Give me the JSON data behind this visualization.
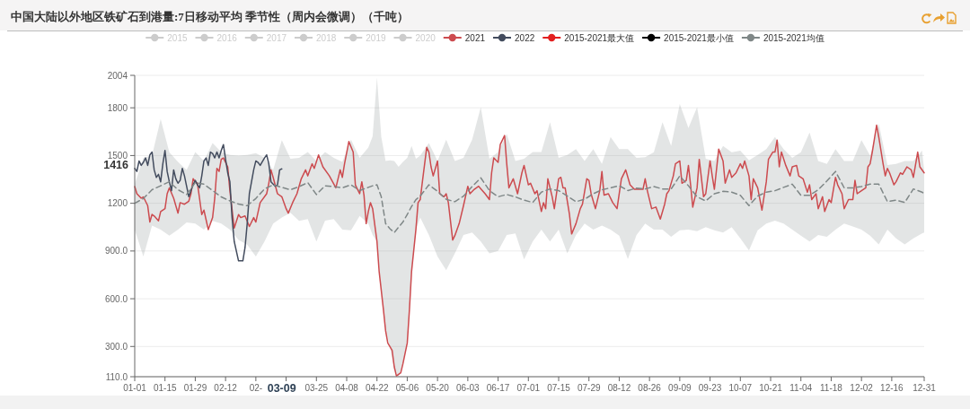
{
  "chart_data": {
    "type": "line",
    "title": "中国大陆以外地区铁矿石到港量:7日移动平均 季节性（周内会微调）（千吨）",
    "xlim": [
      "--01-01",
      "--12-31"
    ],
    "xticks": [
      {
        "value": "--01-01",
        "label": "01-01"
      },
      {
        "value": "--01-15",
        "label": "01-15"
      },
      {
        "value": "--01-29",
        "label": "01-29"
      },
      {
        "value": "--02-12",
        "label": "02-12"
      },
      {
        "value": "--02-26",
        "label": "02-"
      },
      {
        "value": "--03-11",
        "label": null
      },
      {
        "value": "--03-25",
        "label": "03-25"
      },
      {
        "value": "--04-08",
        "label": "04-08"
      },
      {
        "value": "--04-22",
        "label": "04-22"
      },
      {
        "value": "--05-06",
        "label": "05-06"
      },
      {
        "value": "--05-20",
        "label": "05-20"
      },
      {
        "value": "--06-03",
        "label": "06-03"
      },
      {
        "value": "--06-17",
        "label": "06-17"
      },
      {
        "value": "--07-01",
        "label": "07-01"
      },
      {
        "value": "--07-15",
        "label": "07-15"
      },
      {
        "value": "--07-29",
        "label": "07-29"
      },
      {
        "value": "--08-12",
        "label": "08-12"
      },
      {
        "value": "--08-26",
        "label": "08-26"
      },
      {
        "value": "--09-09",
        "label": "09-09"
      },
      {
        "value": "--09-23",
        "label": "09-23"
      },
      {
        "value": "--10-07",
        "label": "10-07"
      },
      {
        "value": "--10-21",
        "label": "10-21"
      },
      {
        "value": "--11-04",
        "label": "11-04"
      },
      {
        "value": "--11-18",
        "label": "11-18"
      },
      {
        "value": "--12-02",
        "label": "12-02"
      },
      {
        "value": "--12-16",
        "label": "12-16"
      },
      {
        "value": "--12-31",
        "label": "12-31"
      }
    ],
    "ylim": [
      110,
      2004
    ],
    "yticks": [
      {
        "value": 110,
        "label": "110.0"
      },
      {
        "value": 300,
        "label": "300.0"
      },
      {
        "value": 600,
        "label": "600.0"
      },
      {
        "value": 900,
        "label": "900.0"
      },
      1200,
      1500,
      1800,
      2004
    ],
    "grid": "y",
    "legend": "top",
    "series": [
      {
        "name": "2015",
        "color": "#cccccc"
      },
      {
        "name": "2016",
        "color": "#cccccc"
      },
      {
        "name": "2017",
        "color": "#cccccc"
      },
      {
        "name": "2018",
        "color": "#cccccc"
      },
      {
        "name": "2019",
        "color": "#cccccc"
      },
      {
        "name": "2020",
        "color": "#cccccc"
      },
      {
        "name": "2021",
        "color": "#cc4b4f",
        "x": [
          "--01-01",
          "--01-02",
          "--01-04",
          "--01-05",
          "--01-07",
          "--01-08",
          "--01-09",
          "--01-10",
          "--01-12",
          "--01-13",
          "--01-15",
          "--01-16",
          "--01-17",
          "--01-19",
          "--01-21",
          "--01-22",
          "--01-24",
          "--01-26",
          "--01-27",
          "--01-28",
          "--01-29",
          "--01-30",
          "--02-01",
          "--02-02",
          "--02-04",
          "--02-06",
          "--02-07",
          "--02-08",
          "--02-09",
          "--02-10",
          "--02-11",
          "--02-13",
          "--02-14",
          "--02-16",
          "--02-18",
          "--02-19",
          "--02-21",
          "--02-23",
          "--02-25",
          "--02-26",
          "--02-28",
          "--03-02",
          "--03-03",
          "--03-04",
          "--03-05",
          "--03-07",
          "--03-09",
          "--03-11",
          "--03-12",
          "--03-14",
          "--03-16",
          "--03-18",
          "--03-20",
          "--03-21",
          "--03-23",
          "--03-24",
          "--03-26",
          "--03-28",
          "--03-31",
          "--04-03",
          "--04-05",
          "--04-06",
          "--04-07",
          "--04-09",
          "--04-11",
          "--04-12",
          "--04-14",
          "--04-15",
          "--04-16",
          "--04-17",
          "--04-18",
          "--04-19",
          "--04-20",
          "--04-22",
          "--04-23",
          "--04-25",
          "--04-26",
          "--04-27",
          "--04-29",
          "--04-30",
          "--05-01",
          "--05-03",
          "--05-04",
          "--05-06",
          "--05-07",
          "--05-08",
          "--05-10",
          "--05-11",
          "--05-12",
          "--05-13",
          "--05-15",
          "--05-16",
          "--05-17",
          "--05-18",
          "--05-20",
          "--05-21",
          "--05-23",
          "--05-24",
          "--05-25",
          "--05-27",
          "--05-28",
          "--05-30",
          "--06-01",
          "--06-03",
          "--06-04",
          "--06-06",
          "--06-08",
          "--06-11",
          "--06-13",
          "--06-14",
          "--06-15",
          "--06-17",
          "--06-18",
          "--06-20",
          "--06-21",
          "--06-22",
          "--06-24",
          "--06-26",
          "--06-28",
          "--06-29",
          "--07-01",
          "--07-02",
          "--07-04",
          "--07-05",
          "--07-07",
          "--07-08",
          "--07-09",
          "--07-10",
          "--07-12",
          "--07-13",
          "--07-15",
          "--07-16",
          "--07-17",
          "--07-18",
          "--07-20",
          "--07-21",
          "--07-23",
          "--07-25",
          "--07-26",
          "--07-28",
          "--07-29",
          "--07-30",
          "--08-01",
          "--08-03",
          "--08-04",
          "--08-05",
          "--08-07",
          "--08-09",
          "--08-11",
          "--08-13",
          "--08-15",
          "--08-17",
          "--08-19",
          "--08-21",
          "--08-23",
          "--08-24",
          "--08-25",
          "--08-27",
          "--08-29",
          "--08-31",
          "--09-02",
          "--09-03",
          "--09-04",
          "--09-06",
          "--09-07",
          "--09-09",
          "--09-10",
          "--09-12",
          "--09-13",
          "--09-14",
          "--09-15",
          "--09-17",
          "--09-18",
          "--09-20",
          "--09-21",
          "--09-23",
          "--09-24",
          "--09-25",
          "--09-27",
          "--09-29",
          "--09-30",
          "--10-02",
          "--10-03",
          "--10-05",
          "--10-07",
          "--10-08",
          "--10-09",
          "--10-11",
          "--10-12",
          "--10-13",
          "--10-15",
          "--10-17",
          "--10-19",
          "--10-20",
          "--10-22",
          "--10-23",
          "--10-24",
          "--10-25",
          "--10-26",
          "--10-28",
          "--10-30",
          "--10-31",
          "--11-02",
          "--11-03",
          "--11-05",
          "--11-07",
          "--11-08",
          "--11-09",
          "--11-11",
          "--11-12",
          "--11-14",
          "--11-15",
          "--11-17",
          "--11-18",
          "--11-20",
          "--11-21",
          "--11-23",
          "--11-24",
          "--11-26",
          "--11-28",
          "--11-29",
          "--11-30",
          "--12-02",
          "--12-04",
          "--12-05",
          "--12-06",
          "--12-07",
          "--12-09",
          "--12-10",
          "--12-12",
          "--12-13",
          "--12-14",
          "--12-15",
          "--12-17",
          "--12-18",
          "--12-20",
          "--12-21",
          "--12-23",
          "--12-25",
          "--12-26",
          "--12-28",
          "--12-29",
          "--12-31"
        ],
        "values": [
          1305,
          1260,
          1232,
          1240,
          1185,
          1082,
          1130,
          1120,
          1090,
          1148,
          1166,
          1260,
          1297,
          1232,
          1138,
          1204,
          1194,
          1213,
          1260,
          1354,
          1335,
          1326,
          1129,
          1157,
          1035,
          1110,
          1232,
          1419,
          1400,
          1476,
          1485,
          1429,
          1279,
          1044,
          1129,
          1110,
          1120,
          1054,
          1110,
          1082,
          1204,
          1260,
          1326,
          1410,
          1363,
          1260,
          1241,
          1166,
          1138,
          1204,
          1260,
          1354,
          1410,
          1372,
          1448,
          1419,
          1504,
          1429,
          1372,
          1297,
          1410,
          1363,
          1448,
          1588,
          1522,
          1316,
          1260,
          1335,
          1251,
          1072,
          1148,
          1204,
          1166,
          960,
          772,
          529,
          398,
          322,
          276,
          172,
          115,
          135,
          191,
          322,
          529,
          772,
          1035,
          1204,
          1223,
          1335,
          1551,
          1522,
          1429,
          1372,
          1466,
          1260,
          1241,
          1260,
          1204,
          969,
          997,
          1072,
          1185,
          1307,
          1260,
          1288,
          1307,
          1260,
          1223,
          1391,
          1485,
          1457,
          1569,
          1626,
          1448,
          1297,
          1354,
          1260,
          1391,
          1438,
          1316,
          1326,
          1260,
          1279,
          1148,
          1204,
          1166,
          1354,
          1241,
          1166,
          1354,
          1363,
          1297,
          1297,
          1129,
          1007,
          1072,
          1166,
          1194,
          1354,
          1344,
          1260,
          1166,
          1279,
          1400,
          1251,
          1260,
          1204,
          1166,
          1354,
          1410,
          1316,
          1288,
          1290,
          1288,
          1354,
          1279,
          1166,
          1176,
          1101,
          1194,
          1260,
          1279,
          1372,
          1448,
          1466,
          1326,
          1344,
          1438,
          1316,
          1176,
          1297,
          1476,
          1241,
          1260,
          1466,
          1372,
          1288,
          1541,
          1466,
          1326,
          1410,
          1363,
          1391,
          1448,
          1419,
          1466,
          1372,
          1223,
          1354,
          1297,
          1157,
          1335,
          1476,
          1522,
          1522,
          1597,
          1429,
          1522,
          1438,
          1372,
          1429,
          1438,
          1372,
          1354,
          1269,
          1316,
          1223,
          1260,
          1166,
          1241,
          1148,
          1223,
          1204,
          1363,
          1316,
          1260,
          1166,
          1223,
          1223,
          1344,
          1260,
          1279,
          1297,
          1429,
          1448,
          1522,
          1691,
          1616,
          1448,
          1372,
          1419,
          1391,
          1316,
          1335,
          1391,
          1382,
          1429,
          1410,
          1363,
          1522,
          1429,
          1391
        ]
      },
      {
        "name": "2022",
        "color": "#434c5e",
        "x": [
          "--01-01",
          "--01-02",
          "--01-03",
          "--01-04",
          "--01-05",
          "--01-06",
          "--01-07",
          "--01-08",
          "--01-09",
          "--01-10",
          "--01-11",
          "--01-12",
          "--01-13",
          "--01-14",
          "--01-15",
          "--01-16",
          "--01-17",
          "--01-18",
          "--01-19",
          "--01-20",
          "--01-21",
          "--01-22",
          "--01-23",
          "--01-24",
          "--01-26",
          "--01-27",
          "--01-28",
          "--01-29",
          "--01-30",
          "--01-31",
          "--02-01",
          "--02-02",
          "--02-03",
          "--02-04",
          "--02-05",
          "--02-06",
          "--02-07",
          "--02-08",
          "--02-09",
          "--02-10",
          "--02-11",
          "--02-12",
          "--02-13",
          "--02-14",
          "--02-15",
          "--02-16",
          "--02-18",
          "--02-20",
          "--02-21",
          "--02-22",
          "--02-23",
          "--02-25",
          "--02-26",
          "--02-27",
          "--02-28",
          "--03-01",
          "--03-02",
          "--03-03",
          "--03-04",
          "--03-06",
          "--03-07",
          "--03-08",
          "--03-09"
        ],
        "values": [
          1419,
          1400,
          1466,
          1438,
          1457,
          1485,
          1438,
          1504,
          1522,
          1410,
          1363,
          1382,
          1335,
          1448,
          1532,
          1400,
          1335,
          1279,
          1410,
          1354,
          1326,
          1344,
          1419,
          1372,
          1241,
          1279,
          1316,
          1344,
          1316,
          1297,
          1372,
          1466,
          1485,
          1438,
          1522,
          1513,
          1485,
          1522,
          1485,
          1532,
          1569,
          1476,
          1391,
          1335,
          1110,
          960,
          838,
          838,
          922,
          1072,
          1260,
          1410,
          1466,
          1457,
          1438,
          1485,
          1504,
          1448,
          1335,
          1307,
          1316,
          1410,
          1416
        ]
      },
      {
        "name": "2015-2021最大值",
        "color": "#e21f1f"
      },
      {
        "name": "2015-2021最小值",
        "color": "#000000"
      },
      {
        "name": "2015-2021均值",
        "color": "#7f8787",
        "line_style": "dashed",
        "x": [
          "--01-01",
          "--01-05",
          "--01-09",
          "--01-13",
          "--01-17",
          "--01-21",
          "--01-25",
          "--01-29",
          "--02-02",
          "--02-06",
          "--02-10",
          "--02-14",
          "--02-18",
          "--02-22",
          "--02-26",
          "--03-01",
          "--03-05",
          "--03-09",
          "--03-13",
          "--03-17",
          "--03-21",
          "--03-25",
          "--03-29",
          "--04-02",
          "--04-06",
          "--04-10",
          "--04-14",
          "--04-18",
          "--04-20",
          "--04-22",
          "--04-24",
          "--04-26",
          "--04-28",
          "--04-30",
          "--05-02",
          "--05-04",
          "--05-06",
          "--05-08",
          "--05-10",
          "--05-12",
          "--05-16",
          "--05-20",
          "--05-24",
          "--05-28",
          "--06-01",
          "--06-05",
          "--06-09",
          "--06-13",
          "--06-17",
          "--06-21",
          "--06-25",
          "--06-29",
          "--07-03",
          "--07-07",
          "--07-11",
          "--07-15",
          "--07-19",
          "--07-23",
          "--07-27",
          "--07-31",
          "--08-04",
          "--08-08",
          "--08-12",
          "--08-16",
          "--08-20",
          "--08-24",
          "--08-28",
          "--09-01",
          "--09-05",
          "--09-09",
          "--09-13",
          "--09-17",
          "--09-21",
          "--09-25",
          "--09-29",
          "--10-03",
          "--10-07",
          "--10-11",
          "--10-15",
          "--10-19",
          "--10-23",
          "--10-27",
          "--10-31",
          "--11-04",
          "--11-08",
          "--11-12",
          "--11-16",
          "--11-20",
          "--11-24",
          "--11-28",
          "--12-02",
          "--12-06",
          "--12-10",
          "--12-14",
          "--12-18",
          "--12-22",
          "--12-26",
          "--12-30",
          "--12-31"
        ],
        "values": [
          1200,
          1230,
          1285,
          1310,
          1335,
          1285,
          1255,
          1330,
          1320,
          1280,
          1240,
          1215,
          1195,
          1185,
          1230,
          1290,
          1316,
          1300,
          1285,
          1305,
          1330,
          1255,
          1310,
          1305,
          1297,
          1316,
          1280,
          1300,
          1310,
          1316,
          1240,
          1072,
          1040,
          1016,
          1050,
          1082,
          1130,
          1180,
          1223,
          1245,
          1316,
          1275,
          1225,
          1210,
          1245,
          1305,
          1360,
          1280,
          1241,
          1255,
          1240,
          1220,
          1205,
          1270,
          1290,
          1280,
          1245,
          1210,
          1225,
          1260,
          1285,
          1297,
          1310,
          1280,
          1295,
          1290,
          1305,
          1290,
          1290,
          1372,
          1310,
          1240,
          1215,
          1260,
          1275,
          1270,
          1250,
          1185,
          1245,
          1270,
          1279,
          1300,
          1320,
          1250,
          1250,
          1285,
          1340,
          1400,
          1297,
          1297,
          1305,
          1320,
          1320,
          1210,
          1220,
          1205,
          1290,
          1270,
          1260
        ],
        "lower": [
          1035,
          866,
          1060,
          1035,
          997,
          1035,
          1080,
          1072,
          1035,
          1090,
          1072,
          1035,
          970,
          940,
          866,
          960,
          1072,
          1110,
          1140,
          1090,
          1100,
          960,
          1091,
          1100,
          1035,
          1030,
          1120,
          1072,
          1000,
          960,
          650,
          398,
          300,
          150,
          112,
          191,
          322,
          772,
          1035,
          1110,
          1000,
          866,
          780,
          885,
          1000,
          1016,
          960,
          885,
          900,
          1000,
          1010,
          847,
          960,
          1035,
          960,
          1035,
          885,
          1000,
          1072,
          1035,
          1060,
          1035,
          997,
          850,
          1000,
          1072,
          1035,
          1035,
          990,
          1030,
          1035,
          1025,
          1050,
          1030,
          1016,
          1050,
          979,
          904,
          1030,
          1072,
          1091,
          1072,
          1035,
          997,
          960,
          1000,
          990,
          1035,
          1072,
          1054,
          1035,
          997,
          941,
          1035,
          979,
          941,
          980,
          1010,
          1016
        ],
        "upper": [
          1320,
          1485,
          1500,
          1729,
          1520,
          1460,
          1410,
          1522,
          1466,
          1579,
          1522,
          1504,
          1500,
          1504,
          1515,
          1485,
          1410,
          1597,
          1480,
          1485,
          1522,
          1466,
          1522,
          1485,
          1460,
          1600,
          1485,
          1550,
          1620,
          1990,
          1616,
          1466,
          1470,
          1466,
          1429,
          1460,
          1485,
          1560,
          1480,
          1500,
          1579,
          1466,
          1600,
          1466,
          1485,
          1600,
          1804,
          1480,
          1522,
          1635,
          1466,
          1480,
          1522,
          1522,
          1710,
          1485,
          1504,
          1541,
          1466,
          1541,
          1448,
          1616,
          1540,
          1541,
          1485,
          1490,
          1520,
          1710,
          1560,
          1823,
          1673,
          1804,
          1480,
          1466,
          1560,
          1520,
          1530,
          1470,
          1504,
          1541,
          1616,
          1541,
          1485,
          1520,
          1644,
          1466,
          1448,
          1541,
          1466,
          1466,
          1597,
          1500,
          1700,
          1440,
          1448,
          1466,
          1466,
          1530,
          1410
        ]
      }
    ],
    "annotations": [
      "1416",
      "03-09"
    ]
  }
}
